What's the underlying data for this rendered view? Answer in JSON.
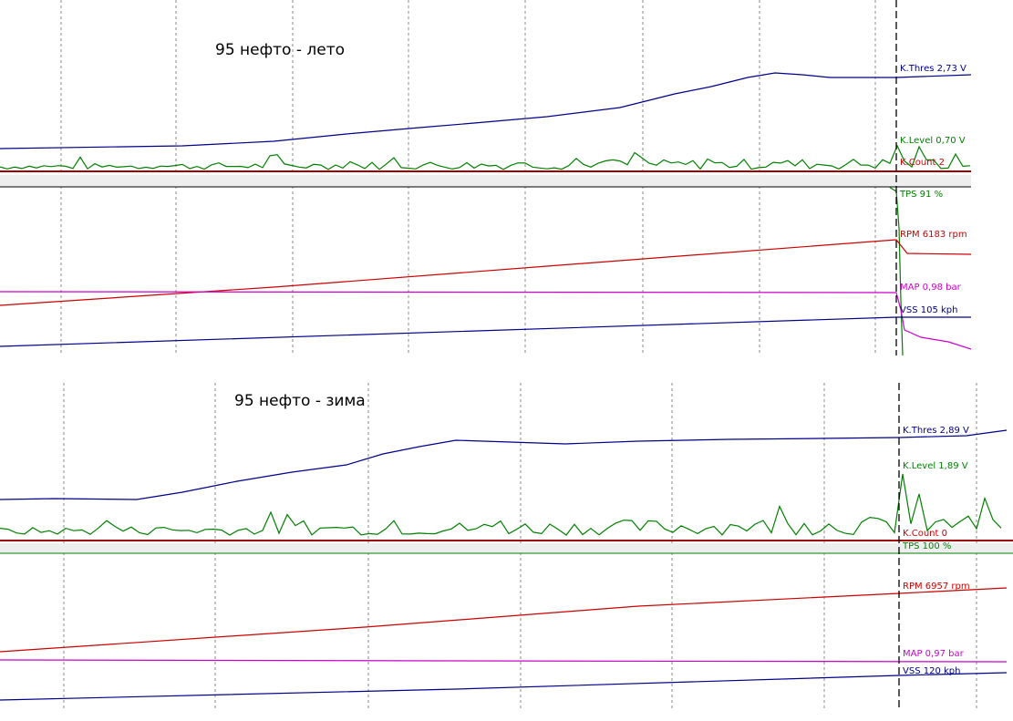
{
  "panels": [
    {
      "title": "95 нефто - лето",
      "channels": [
        {
          "label": "K.Thres 2,73 V"
        },
        {
          "label": "K.Level 0,70 V"
        },
        {
          "label": "K.Count 2"
        },
        {
          "label": "TPS 91 %"
        },
        {
          "label": "RPM 6183 rpm"
        },
        {
          "label": "MAP 0,98 bar"
        },
        {
          "label": "VSS 105 kph"
        }
      ]
    },
    {
      "title": "95 нефто - зима",
      "channels": [
        {
          "label": "K.Thres 2,89 V"
        },
        {
          "label": "K.Level 1,89 V"
        },
        {
          "label": "K.Count 0"
        },
        {
          "label": "TPS 100 %"
        },
        {
          "label": "RPM 6957 rpm"
        },
        {
          "label": "MAP 0,97 bar"
        },
        {
          "label": "VSS 120 kph"
        }
      ]
    }
  ]
}
